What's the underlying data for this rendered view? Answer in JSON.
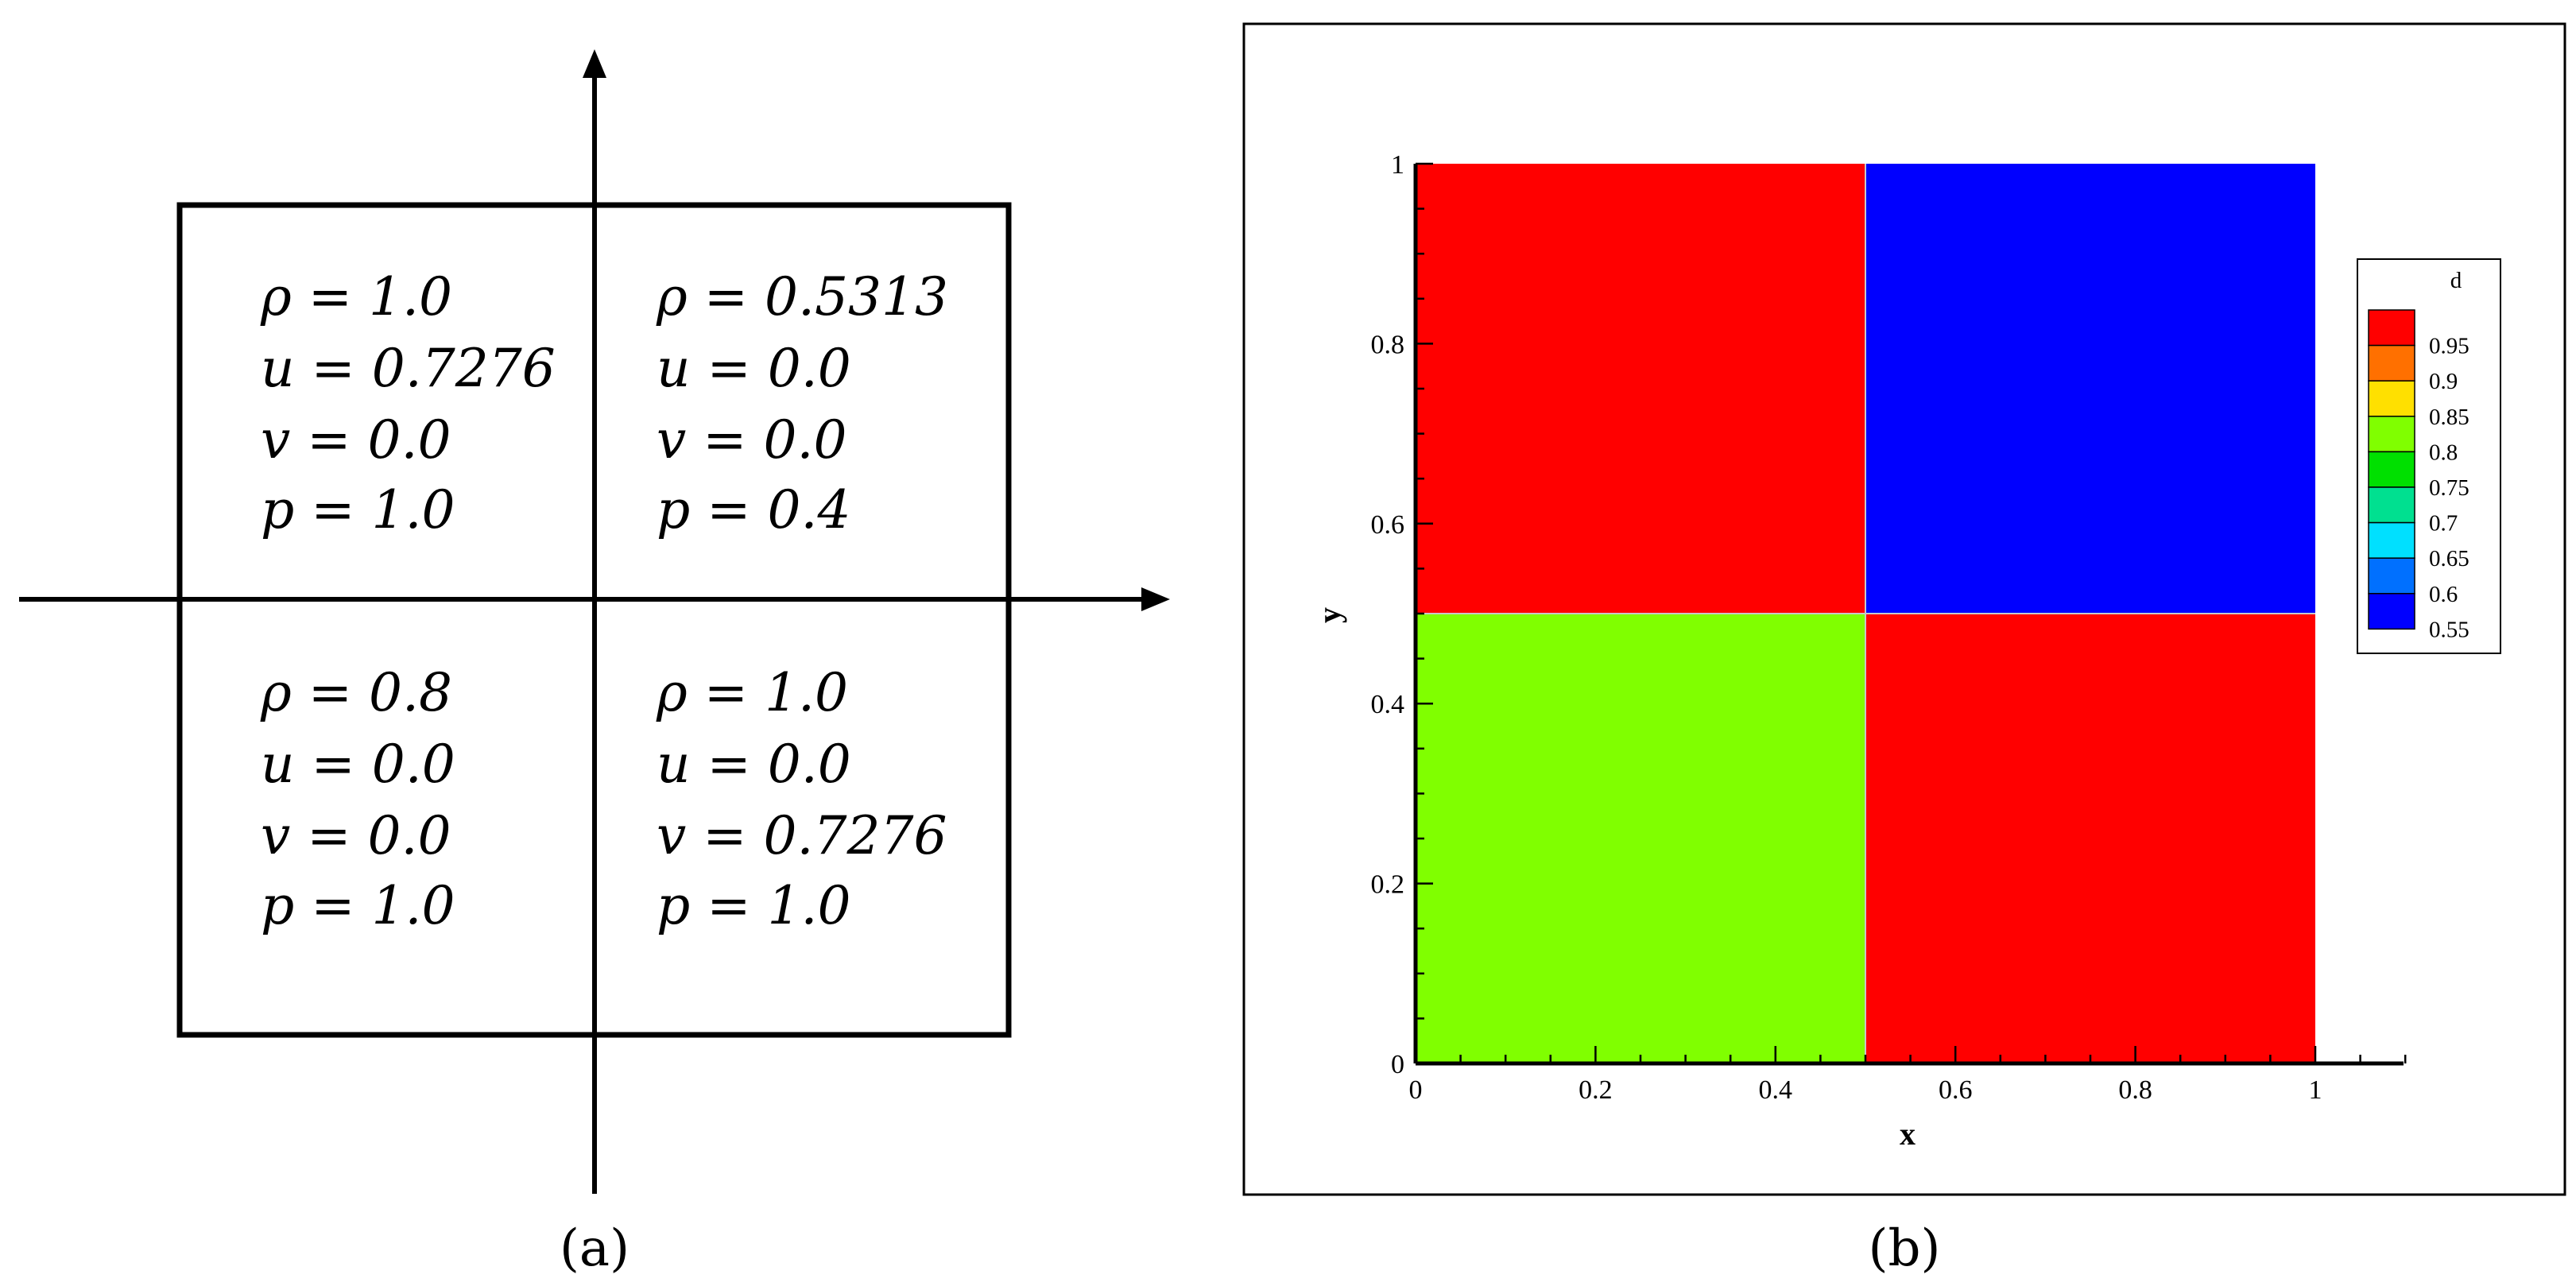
{
  "panel_a": {
    "caption": "(a)",
    "quadrants": [
      {
        "position": "top-left",
        "lines": [
          "ρ = 1.0",
          "u = 0.7276",
          "v = 0.0",
          "p = 1.0"
        ]
      },
      {
        "position": "top-right",
        "lines": [
          "ρ = 0.5313",
          "u = 0.0",
          "v = 0.0",
          "p = 0.4"
        ]
      },
      {
        "position": "bottom-left",
        "lines": [
          "ρ = 0.8",
          "u = 0.0",
          "v = 0.0",
          "p = 1.0"
        ]
      },
      {
        "position": "bottom-right",
        "lines": [
          "ρ = 1.0",
          "u = 0.0",
          "v = 0.7276",
          "p = 1.0"
        ]
      }
    ]
  },
  "panel_b": {
    "caption": "(b)",
    "chart_data": {
      "type": "heatmap",
      "xlabel": "x",
      "ylabel": "y",
      "xlim": [
        0,
        1
      ],
      "ylim": [
        0,
        1
      ],
      "x_ticks": [
        "0",
        "0.2",
        "0.4",
        "0.6",
        "0.8",
        "1"
      ],
      "y_ticks": [
        "0",
        "0.2",
        "0.4",
        "0.6",
        "0.8",
        "1"
      ],
      "regions": [
        {
          "x": [
            0,
            0.5
          ],
          "y": [
            0.5,
            1
          ],
          "value": 1.0,
          "color": "#ff0000"
        },
        {
          "x": [
            0.5,
            1
          ],
          "y": [
            0.5,
            1
          ],
          "value": 0.5313,
          "color": "#0000ff"
        },
        {
          "x": [
            0,
            0.5
          ],
          "y": [
            0,
            0.5
          ],
          "value": 0.8,
          "color": "#80ff00"
        },
        {
          "x": [
            0.5,
            1
          ],
          "y": [
            0,
            0.5
          ],
          "value": 1.0,
          "color": "#ff0000"
        }
      ],
      "legend": {
        "title": "d",
        "placement": "right",
        "levels": [
          "0.95",
          "0.9",
          "0.85",
          "0.8",
          "0.75",
          "0.7",
          "0.65",
          "0.6",
          "0.55"
        ],
        "colors": [
          "#ff0000",
          "#ff7000",
          "#ffe000",
          "#80ff00",
          "#00e000",
          "#00e090",
          "#00e0ff",
          "#0070ff",
          "#0000ff"
        ]
      }
    }
  }
}
